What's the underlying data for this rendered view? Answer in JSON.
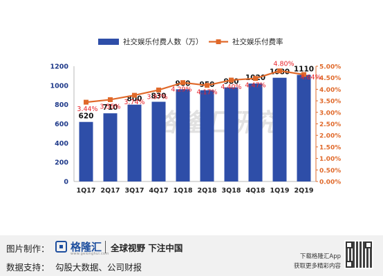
{
  "chart_data": {
    "type": "bar+line",
    "categories": [
      "1Q17",
      "2Q17",
      "3Q17",
      "4Q17",
      "1Q18",
      "2Q18",
      "3Q18",
      "4Q18",
      "1Q19",
      "2Q19"
    ],
    "series": [
      {
        "name": "社交娱乐付费人数（万）",
        "type": "bar",
        "axis": "left",
        "color": "#2e4ea8",
        "values": [
          620,
          710,
          800,
          830,
          960,
          950,
          980,
          1020,
          1080,
          1110
        ],
        "labels": [
          "620",
          "710",
          "800",
          "830",
          "960",
          "950",
          "980",
          "1020",
          "1080",
          "1110"
        ]
      },
      {
        "name": "社交娱乐付费率",
        "type": "line",
        "axis": "right",
        "color": "#e0692a",
        "values": [
          3.44,
          3.55,
          3.74,
          3.97,
          4.29,
          4.17,
          4.4,
          4.47,
          4.8,
          4.64
        ],
        "labels": [
          "3.44%",
          "3.55%",
          "3.74%",
          "3.97%",
          "4.29%",
          "4.17%",
          "4.40%",
          "4.47%",
          "4.80%",
          "4.64%"
        ]
      }
    ],
    "left_axis": {
      "min": 0,
      "max": 1200,
      "ticks": [
        "0",
        "100",
        "200",
        "300",
        "400",
        "500",
        "600",
        "700",
        "800",
        "900",
        "1000",
        "1100",
        "1200"
      ],
      "tick_values": [
        0,
        200,
        400,
        600,
        800,
        1000,
        1200
      ],
      "tick_labels": [
        "0",
        "200",
        "400",
        "600",
        "800",
        "1000",
        "1200"
      ]
    },
    "right_axis": {
      "min": 0,
      "max": 5,
      "tick_values": [
        0,
        0.5,
        1,
        1.5,
        2,
        2.5,
        3,
        3.5,
        4,
        4.5,
        5
      ],
      "tick_labels": [
        "0.00%",
        "0.50%",
        "1.00%",
        "1.50%",
        "2.00%",
        "2.50%",
        "3.00%",
        "3.50%",
        "4.00%",
        "4.50%",
        "5.00%"
      ]
    },
    "legend_position": "top-center",
    "grid": false,
    "watermark": "格隆汇研究"
  },
  "footer": {
    "credit_label": "图片制作：",
    "logo_name": "格隆汇",
    "logo_sub": "www.gelonghui.com",
    "slogan": "全球视野 下注中国",
    "source_label": "数据支持：",
    "source_text": "勾股大数据、公司财报",
    "app_line1": "下载格隆汇App",
    "app_line2": "获取更多精彩内容"
  },
  "colors": {
    "bar": "#2e4ea8",
    "line": "#e0692a",
    "line_label": "#e8242b",
    "right_axis": "#e0692a",
    "left_axis": "#1f3a8a"
  }
}
